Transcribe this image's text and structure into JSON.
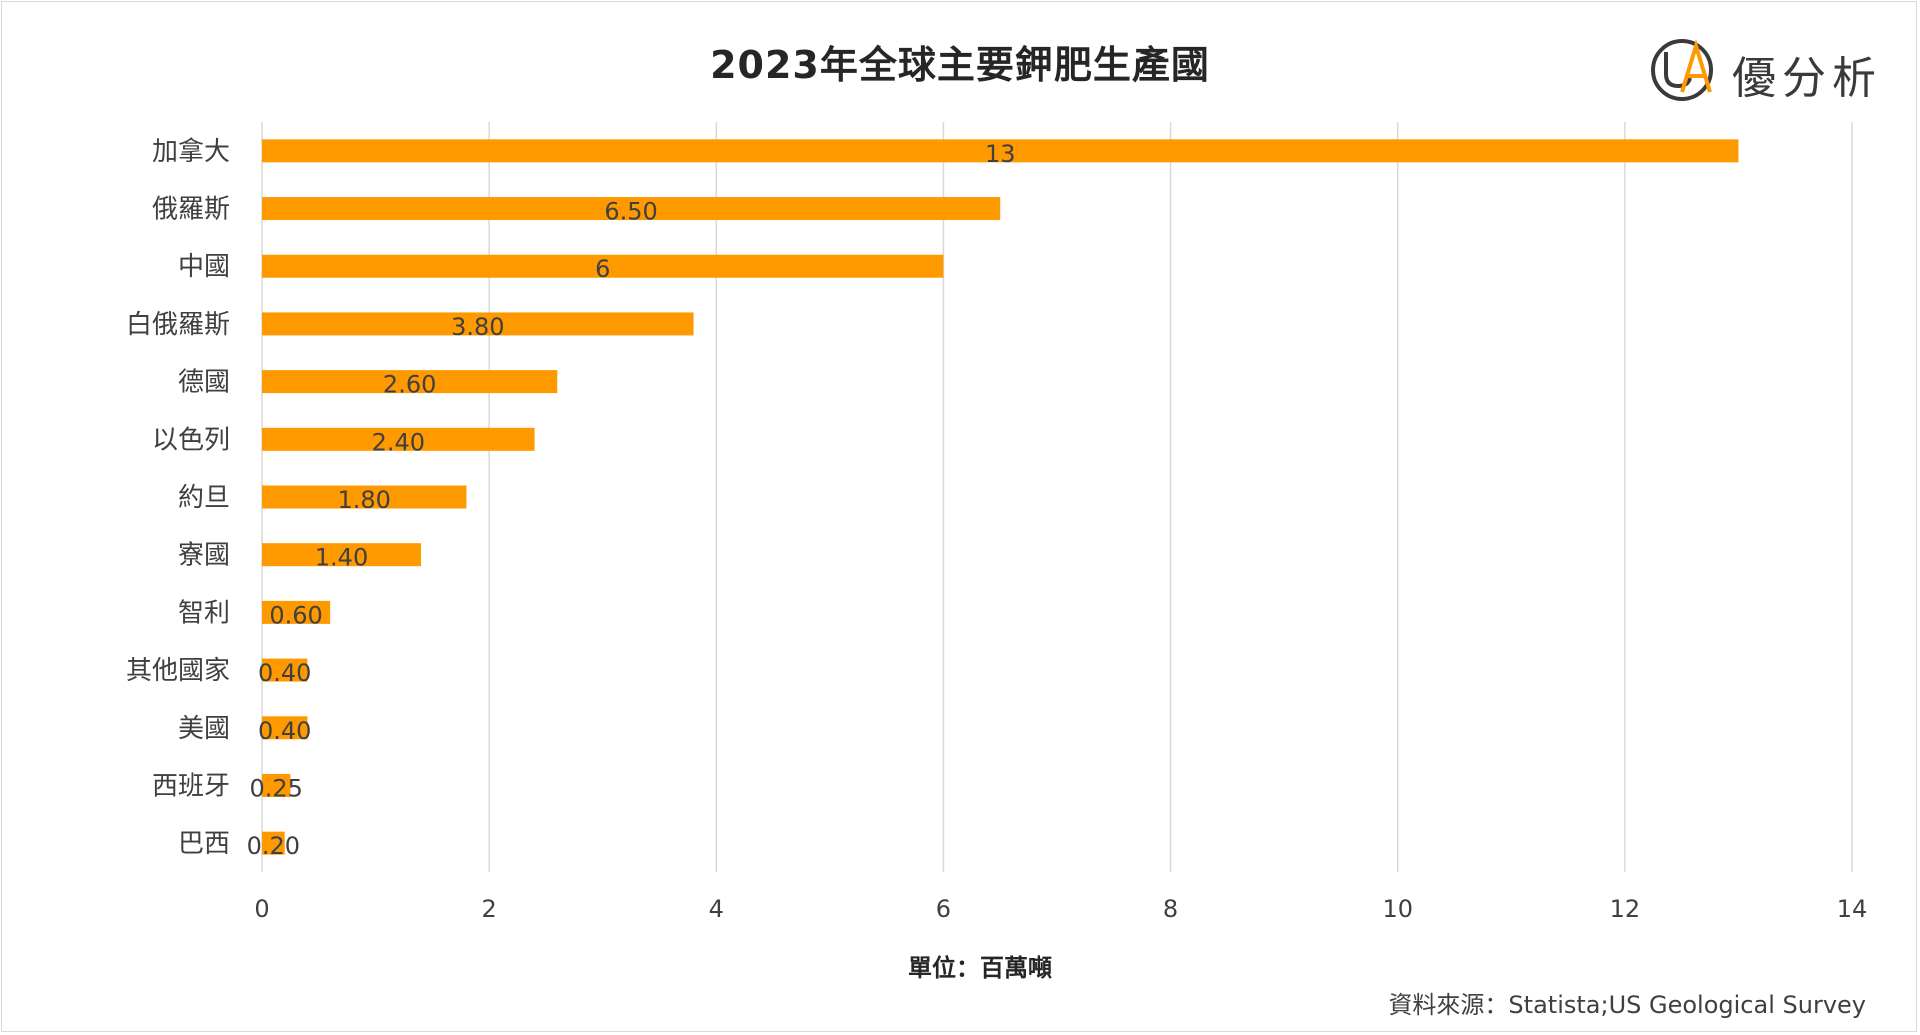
{
  "header": {
    "title": "2023年全球主要鉀肥生產國",
    "logo_text": "優分析",
    "logo_mark": "UA"
  },
  "footer": {
    "source": "資料來源：Statista;US Geological Survey"
  },
  "colors": {
    "bar": "#FF9900",
    "grid": "#d9d9d9",
    "text": "#404040"
  },
  "chart_data": {
    "type": "bar",
    "orientation": "horizontal",
    "title": "2023年全球主要鉀肥生產國",
    "xlabel": "單位：百萬噸",
    "ylabel": "",
    "categories": [
      "加拿大",
      "俄羅斯",
      "中國",
      "白俄羅斯",
      "德國",
      "以色列",
      "約旦",
      "寮國",
      "智利",
      "其他國家",
      "美國",
      "西班牙",
      "巴西"
    ],
    "values": [
      13,
      6.5,
      6,
      3.8,
      2.6,
      2.4,
      1.8,
      1.4,
      0.6,
      0.4,
      0.4,
      0.25,
      0.2
    ],
    "data_labels": [
      "13",
      "6.50",
      "6",
      "3.80",
      "2.60",
      "2.40",
      "1.80",
      "1.40",
      "0.60",
      "0.40",
      "0.40",
      "0.25",
      "0.20"
    ],
    "xlim": [
      0,
      14
    ],
    "xticks": [
      0,
      2,
      4,
      6,
      8,
      10,
      12,
      14
    ],
    "grid": "vertical",
    "legend": "none"
  }
}
